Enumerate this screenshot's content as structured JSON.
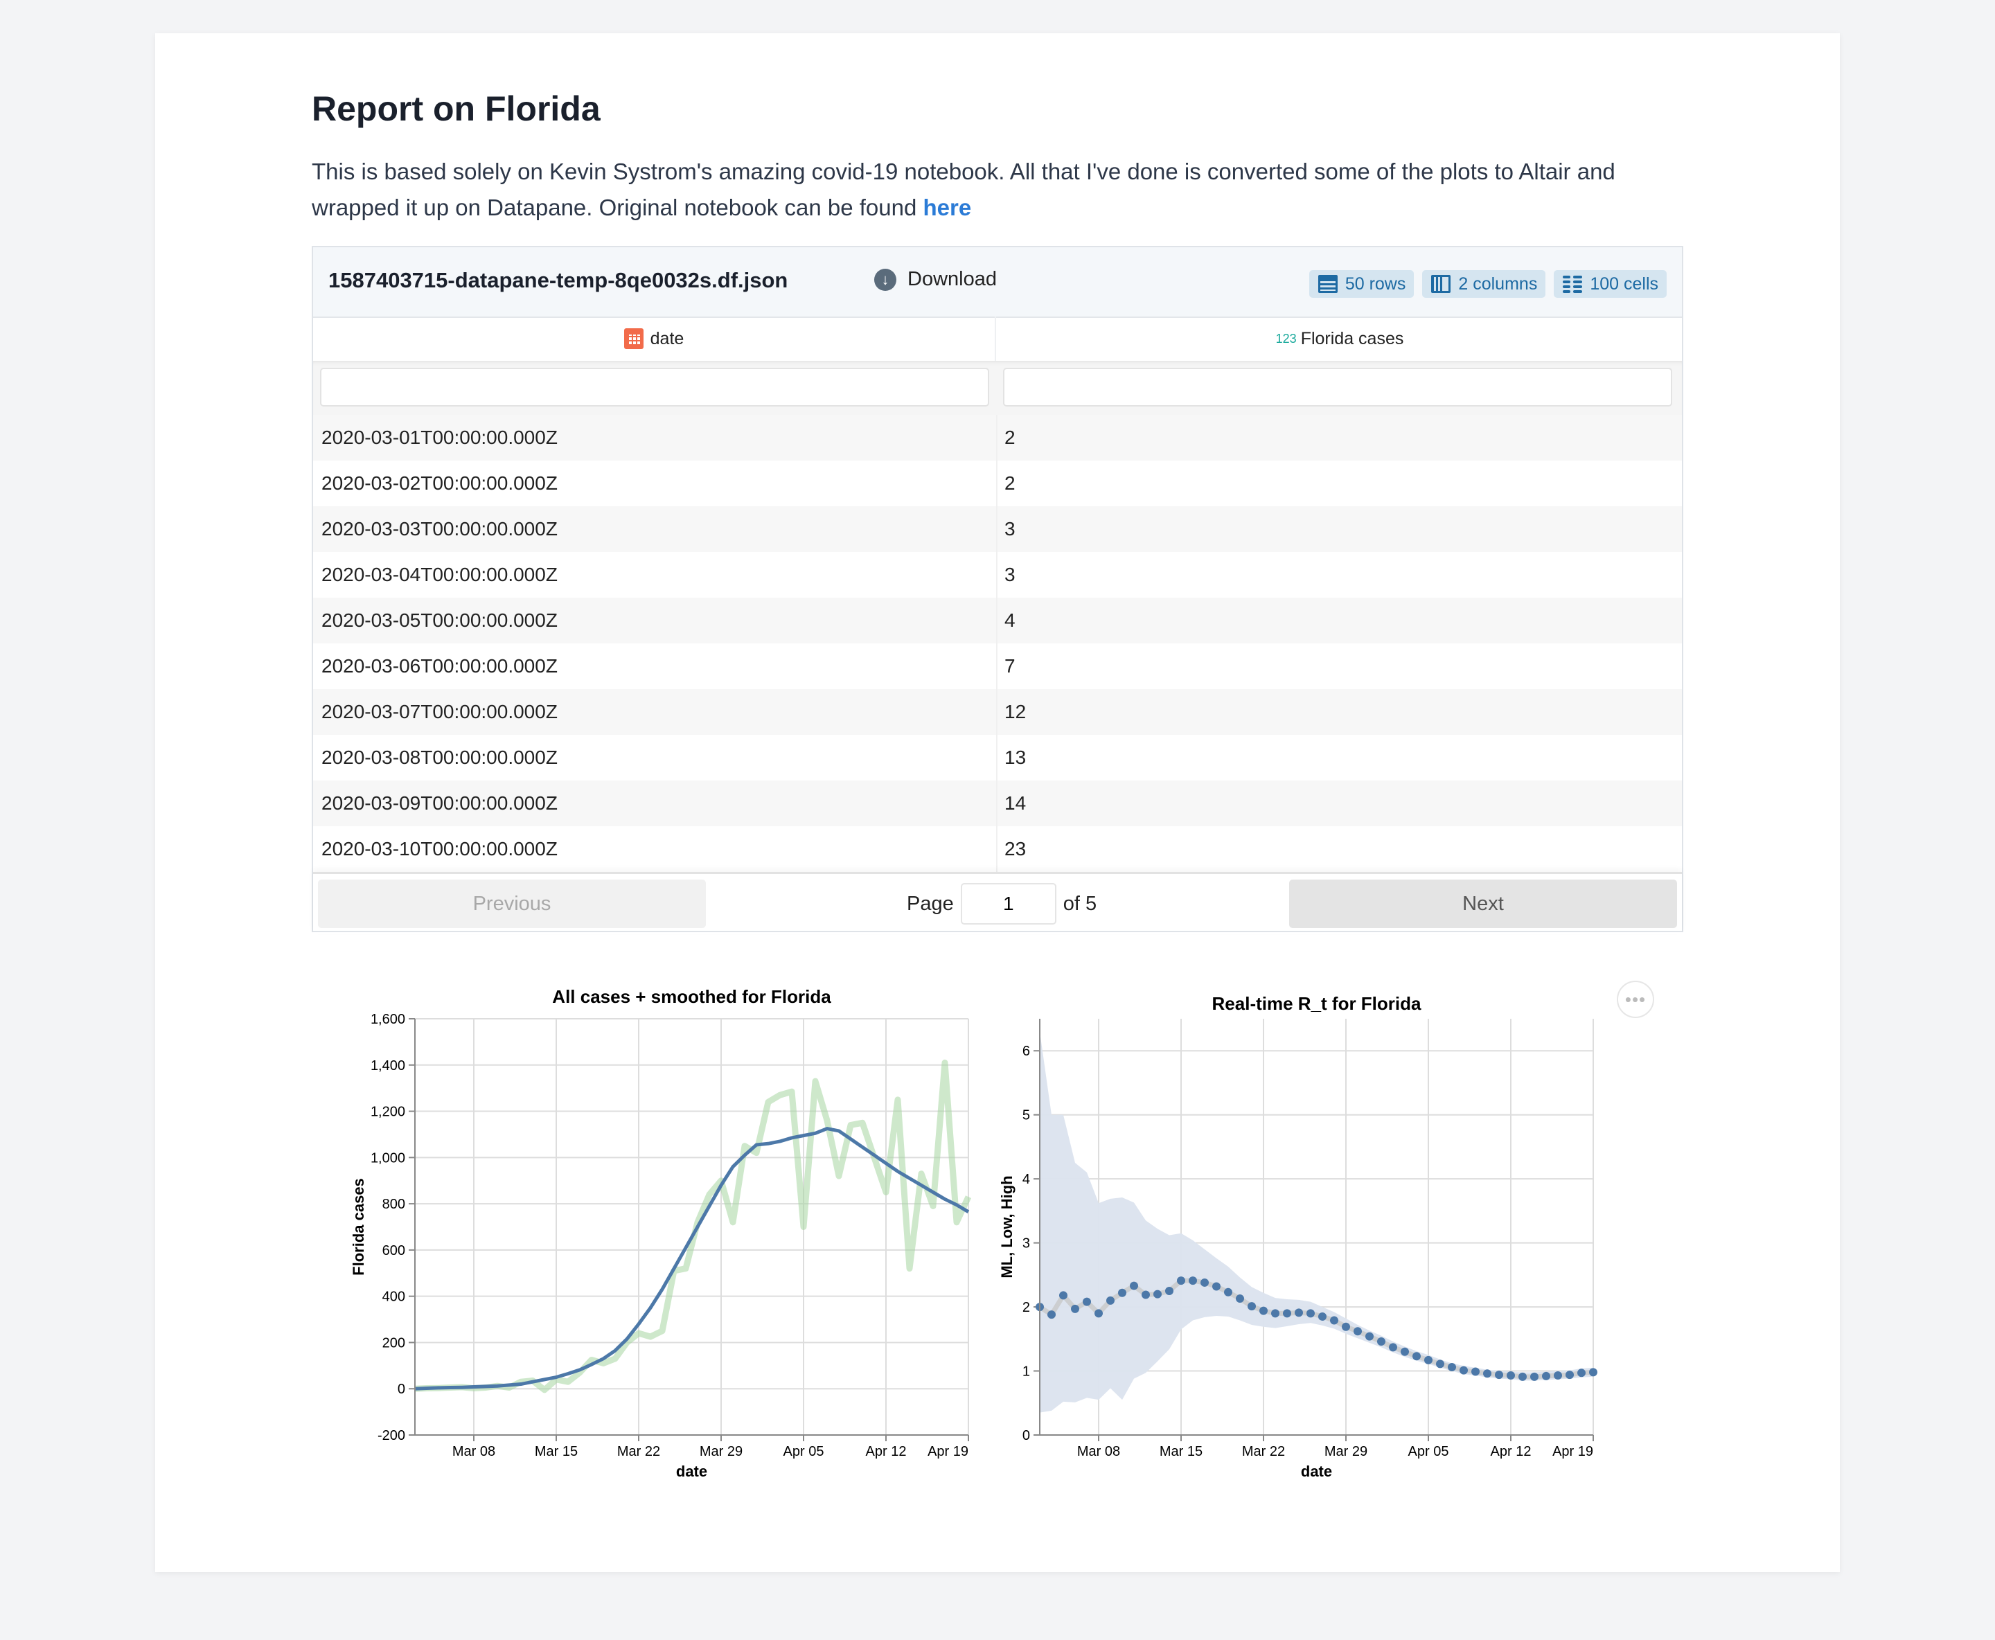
{
  "report": {
    "title": "Report on Florida",
    "description": "This is based solely on Kevin Systrom's amazing covid-19 notebook. All that I've done is converted some of the plots to Altair and wrapped it up on Datapane. Original notebook can be found ",
    "link_text": "here"
  },
  "table": {
    "filename": "1587403715-datapane-temp-8qe0032s.df.json",
    "download_label": "Download",
    "badges": {
      "rows": "50 rows",
      "columns": "2 columns",
      "cells": "100 cells"
    },
    "columns": [
      {
        "label": "date",
        "type_icon": "calendar-icon"
      },
      {
        "label": "Florida cases",
        "type_icon": "123"
      }
    ],
    "filter_values": [
      "",
      ""
    ],
    "rows": [
      [
        "2020-03-01T00:00:00.000Z",
        "2"
      ],
      [
        "2020-03-02T00:00:00.000Z",
        "2"
      ],
      [
        "2020-03-03T00:00:00.000Z",
        "3"
      ],
      [
        "2020-03-04T00:00:00.000Z",
        "3"
      ],
      [
        "2020-03-05T00:00:00.000Z",
        "4"
      ],
      [
        "2020-03-06T00:00:00.000Z",
        "7"
      ],
      [
        "2020-03-07T00:00:00.000Z",
        "12"
      ],
      [
        "2020-03-08T00:00:00.000Z",
        "13"
      ],
      [
        "2020-03-09T00:00:00.000Z",
        "14"
      ],
      [
        "2020-03-10T00:00:00.000Z",
        "23"
      ]
    ],
    "pagination": {
      "previous": "Previous",
      "page_label": "Page",
      "page": "1",
      "of_label": "of 5",
      "next": "Next"
    }
  },
  "more_button": "•••",
  "colors": {
    "line": "#4c78a8",
    "raw": "#a6d5a0",
    "band": "#dbe3ee",
    "ml_line": "#c8c8c8",
    "accent_link": "#2b7bd6"
  },
  "chart_data": [
    {
      "type": "line",
      "title": "All cases + smoothed for Florida",
      "xlabel": "date",
      "ylabel": "Florida cases",
      "x_start": "2020-03-03",
      "ylim": [
        -200,
        1600
      ],
      "yticks": [
        -200,
        0,
        200,
        400,
        600,
        800,
        1000,
        1200,
        1400,
        1600
      ],
      "ytick_labels": [
        "-200",
        "0",
        "200",
        "400",
        "600",
        "800",
        "1,000",
        "1,200",
        "1,400",
        "1,600"
      ],
      "xticks": [
        {
          "day": 5,
          "label": "Mar 08"
        },
        {
          "day": 12,
          "label": "Mar 15"
        },
        {
          "day": 19,
          "label": "Mar 22"
        },
        {
          "day": 26,
          "label": "Mar 29"
        },
        {
          "day": 33,
          "label": "Apr 05"
        },
        {
          "day": 40,
          "label": "Apr 12"
        },
        {
          "day": 47,
          "label": "Apr 19"
        }
      ],
      "grid": true,
      "series": [
        {
          "name": "cases",
          "values": [
            0,
            2,
            3,
            5,
            7,
            2,
            5,
            12,
            5,
            30,
            35,
            -5,
            40,
            30,
            70,
            125,
            110,
            130,
            200,
            240,
            225,
            250,
            510,
            520,
            720,
            840,
            900,
            720,
            1050,
            1020,
            1240,
            1270,
            1285,
            700,
            1330,
            1160,
            920,
            1140,
            1150,
            1000,
            850,
            1250,
            520,
            930,
            790,
            1410,
            720,
            830
          ]
        },
        {
          "name": "smoothed",
          "values": [
            0,
            2,
            4,
            5,
            6,
            8,
            10,
            12,
            16,
            20,
            30,
            40,
            50,
            65,
            82,
            105,
            130,
            165,
            215,
            280,
            350,
            430,
            520,
            610,
            700,
            790,
            880,
            960,
            1010,
            1055,
            1060,
            1070,
            1085,
            1095,
            1105,
            1125,
            1115,
            1080,
            1045,
            1010,
            975,
            940,
            910,
            880,
            850,
            820,
            795,
            765
          ]
        }
      ]
    },
    {
      "type": "line",
      "title": "Real-time R_t for Florida",
      "xlabel": "date",
      "ylabel": "ML, Low, High",
      "x_start": "2020-03-03",
      "ylim": [
        0,
        6.5
      ],
      "yticks": [
        0,
        1,
        2,
        3,
        4,
        5,
        6
      ],
      "ytick_labels": [
        "0",
        "1",
        "2",
        "3",
        "4",
        "5",
        "6"
      ],
      "xticks": [
        {
          "day": 5,
          "label": "Mar 08"
        },
        {
          "day": 12,
          "label": "Mar 15"
        },
        {
          "day": 19,
          "label": "Mar 22"
        },
        {
          "day": 26,
          "label": "Mar 29"
        },
        {
          "day": 33,
          "label": "Apr 05"
        },
        {
          "day": 40,
          "label": "Apr 12"
        },
        {
          "day": 47,
          "label": "Apr 19"
        }
      ],
      "grid": true,
      "series": [
        {
          "name": "ML",
          "values": [
            2.0,
            1.88,
            2.18,
            1.97,
            2.08,
            1.9,
            2.1,
            2.22,
            2.33,
            2.19,
            2.2,
            2.25,
            2.41,
            2.41,
            2.38,
            2.32,
            2.23,
            2.13,
            2.01,
            1.94,
            1.9,
            1.9,
            1.91,
            1.9,
            1.85,
            1.79,
            1.69,
            1.62,
            1.54,
            1.46,
            1.37,
            1.3,
            1.23,
            1.17,
            1.11,
            1.06,
            1.01,
            0.99,
            0.96,
            0.94,
            0.93,
            0.91,
            0.91,
            0.92,
            0.93,
            0.94,
            0.97,
            0.98
          ]
        },
        {
          "name": "Low",
          "values": [
            0.35,
            0.38,
            0.52,
            0.51,
            0.58,
            0.55,
            0.73,
            0.55,
            0.88,
            0.97,
            1.15,
            1.34,
            1.65,
            1.79,
            1.84,
            1.86,
            1.85,
            1.79,
            1.72,
            1.69,
            1.67,
            1.7,
            1.73,
            1.75,
            1.71,
            1.66,
            1.58,
            1.51,
            1.44,
            1.37,
            1.29,
            1.22,
            1.16,
            1.11,
            1.05,
            1.0,
            0.95,
            0.93,
            0.9,
            0.88,
            0.87,
            0.85,
            0.85,
            0.86,
            0.87,
            0.88,
            0.9,
            0.91
          ]
        },
        {
          "name": "High",
          "values": [
            6.3,
            5.0,
            5.0,
            4.25,
            4.1,
            3.62,
            3.69,
            3.71,
            3.63,
            3.35,
            3.22,
            3.12,
            3.15,
            3.04,
            2.9,
            2.76,
            2.63,
            2.46,
            2.31,
            2.22,
            2.14,
            2.12,
            2.11,
            2.08,
            2.0,
            1.92,
            1.82,
            1.72,
            1.63,
            1.55,
            1.46,
            1.38,
            1.31,
            1.25,
            1.18,
            1.12,
            1.08,
            1.05,
            1.02,
            1.0,
            0.99,
            0.98,
            0.98,
            0.99,
            1.0,
            1.01,
            1.04,
            1.05
          ]
        }
      ]
    }
  ]
}
